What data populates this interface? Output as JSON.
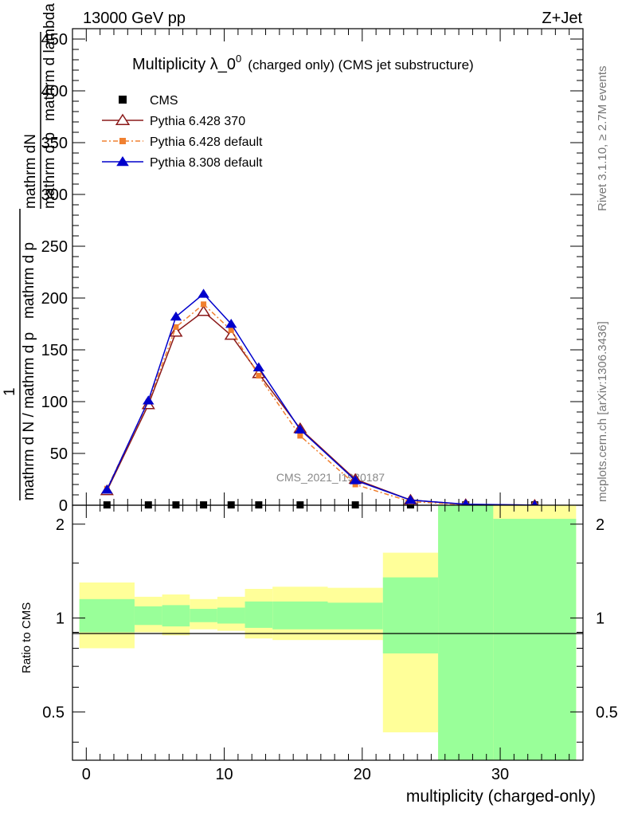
{
  "header": {
    "left": "13000 GeV pp",
    "right": "Z+Jet"
  },
  "side_labels": {
    "rivet": "Rivet 3.1.10, ≥ 2.7M events",
    "mcplots": "mcplots.cern.ch [arXiv:1306.3436]"
  },
  "chart_data": [
    {
      "type": "line",
      "title": "Multiplicity λ_0",
      "title_superscript": "0",
      "title_suffix": "(charged only) (CMS jet substructure)",
      "ylabel_parts": {
        "numerator": "mathrm dN",
        "denominator_top": "mathrm d p",
        "sub_T": "T",
        "denominator_top2": "mathrm d lambda",
        "left_one": "1",
        "left_denominator": "mathrm d N / mathrm d p",
        "left_denom2": "mathrm d p"
      },
      "watermark": "CMS_2021_I1920187",
      "xlim": [
        -1,
        36
      ],
      "ylim": [
        0,
        460
      ],
      "yticks": [
        0,
        50,
        100,
        150,
        200,
        250,
        300,
        350,
        400,
        450
      ],
      "legend_position": "top-left",
      "series": [
        {
          "name": "CMS",
          "color": "#000000",
          "marker": "square",
          "x": [
            1.5,
            4.5,
            6.5,
            8.5,
            10.5,
            12.5,
            15.5,
            19.5,
            23.5,
            27.5,
            32.5
          ],
          "values": [
            0.3,
            0.3,
            0.3,
            0.3,
            0.3,
            0.3,
            0.3,
            0.3,
            0.3,
            0.3,
            0.3
          ]
        },
        {
          "name": "Pythia 6.428 370",
          "color": "#8b1a1a",
          "marker": "open-triangle",
          "x": [
            1.5,
            4.5,
            6.5,
            8.5,
            10.5,
            12.5,
            15.5,
            19.5,
            23.5,
            27.5,
            32.5
          ],
          "values": [
            14,
            97,
            167,
            187,
            164,
            127,
            74,
            25,
            5,
            0.8,
            0.1
          ]
        },
        {
          "name": "Pythia 6.428 default",
          "color": "#f08030",
          "marker": "square",
          "x": [
            1.5,
            4.5,
            6.5,
            8.5,
            10.5,
            12.5,
            15.5,
            19.5,
            23.5,
            27.5,
            32.5
          ],
          "values": [
            16,
            100,
            172,
            194,
            169,
            125,
            67,
            20,
            3.5,
            0.5,
            0.05
          ]
        },
        {
          "name": "Pythia 8.308 default",
          "color": "#0000cc",
          "marker": "triangle",
          "x": [
            1.5,
            4.5,
            6.5,
            8.5,
            10.5,
            12.5,
            15.5,
            19.5,
            23.5,
            27.5,
            32.5
          ],
          "values": [
            15,
            101,
            182,
            204,
            175,
            133,
            73,
            24,
            5,
            1,
            0.1
          ]
        }
      ]
    },
    {
      "type": "area",
      "ylabel": "Ratio to CMS",
      "xlabel": "multiplicity (charged-only)",
      "xlim": [
        -1,
        36
      ],
      "ylim": [
        0.35,
        2.3
      ],
      "xticks": [
        0,
        10,
        20,
        30
      ],
      "yticks": [
        0.5,
        1,
        2
      ],
      "reference_line": 1,
      "bands": [
        {
          "xmin": -0.5,
          "xmax": 3.5,
          "stat_lo": 0.9,
          "stat_hi": 1.15,
          "tot_lo": 0.8,
          "tot_hi": 1.3
        },
        {
          "xmin": 3.5,
          "xmax": 5.5,
          "stat_lo": 0.95,
          "stat_hi": 1.09,
          "tot_lo": 0.9,
          "tot_hi": 1.17
        },
        {
          "xmin": 5.5,
          "xmax": 7.5,
          "stat_lo": 0.94,
          "stat_hi": 1.1,
          "tot_lo": 0.88,
          "tot_hi": 1.19
        },
        {
          "xmin": 7.5,
          "xmax": 9.5,
          "stat_lo": 0.97,
          "stat_hi": 1.07,
          "tot_lo": 0.92,
          "tot_hi": 1.15
        },
        {
          "xmin": 9.5,
          "xmax": 11.5,
          "stat_lo": 0.96,
          "stat_hi": 1.08,
          "tot_lo": 0.91,
          "tot_hi": 1.17
        },
        {
          "xmin": 11.5,
          "xmax": 13.5,
          "stat_lo": 0.93,
          "stat_hi": 1.13,
          "tot_lo": 0.86,
          "tot_hi": 1.24
        },
        {
          "xmin": 13.5,
          "xmax": 17.5,
          "stat_lo": 0.92,
          "stat_hi": 1.13,
          "tot_lo": 0.85,
          "tot_hi": 1.26
        },
        {
          "xmin": 17.5,
          "xmax": 21.5,
          "stat_lo": 0.92,
          "stat_hi": 1.12,
          "tot_lo": 0.85,
          "tot_hi": 1.25
        },
        {
          "xmin": 21.5,
          "xmax": 25.5,
          "stat_lo": 0.77,
          "stat_hi": 1.35,
          "tot_lo": 0.43,
          "tot_hi": 1.62
        },
        {
          "xmin": 25.5,
          "xmax": 29.5,
          "stat_lo": 0.35,
          "stat_hi": 2.3,
          "tot_lo": 0.35,
          "tot_hi": 2.3
        },
        {
          "xmin": 29.5,
          "xmax": 35.5,
          "stat_lo": 0.35,
          "stat_hi": 2.08,
          "tot_lo": 0.35,
          "tot_hi": 2.3
        }
      ],
      "colors": {
        "stat": "#99ff99",
        "total": "#ffff99"
      }
    }
  ]
}
